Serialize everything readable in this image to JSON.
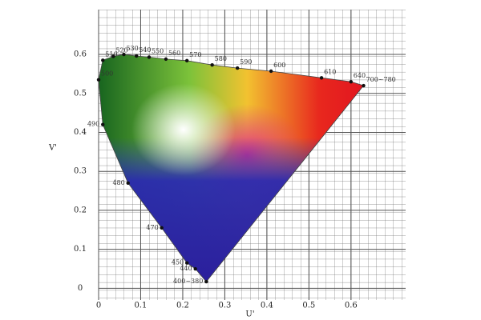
{
  "chart_data": {
    "type": "scatter",
    "x_label": "U'",
    "y_label": "V'",
    "x": [
      0.256,
      0.23,
      0.21,
      0.15,
      0.07,
      0.01,
      0.0,
      0.01,
      0.035,
      0.06,
      0.09,
      0.12,
      0.16,
      0.21,
      0.27,
      0.33,
      0.41,
      0.53,
      0.6,
      0.63
    ],
    "values": [
      0.017,
      0.05,
      0.065,
      0.155,
      0.27,
      0.42,
      0.535,
      0.585,
      0.595,
      0.6,
      0.596,
      0.593,
      0.588,
      0.584,
      0.573,
      0.565,
      0.557,
      0.54,
      0.53,
      0.52
    ],
    "point_labels": [
      "400~380",
      "440",
      "450",
      "470",
      "480",
      "490",
      "500",
      "510",
      "520",
      "530",
      "540",
      "550",
      "560",
      "570",
      "580",
      "590",
      "600",
      "610",
      "640",
      "700~780"
    ],
    "color": "#111111",
    "xlim": [
      0,
      0.73
    ],
    "ylim": [
      -0.03,
      0.715
    ],
    "xticks": [
      0,
      0.1,
      0.2,
      0.3,
      0.4,
      0.5,
      0.6
    ],
    "yticks": [
      0,
      0.1,
      0.2,
      0.3,
      0.4,
      0.5,
      0.6
    ],
    "grid": true
  }
}
